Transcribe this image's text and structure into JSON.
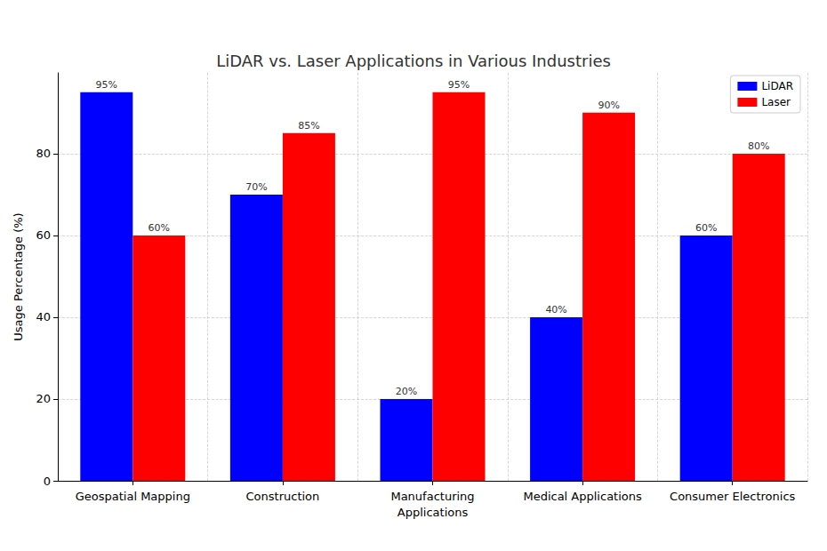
{
  "chart_data": {
    "type": "bar",
    "title": "LiDAR vs. Laser Applications in Various Industries",
    "y_label": "Usage Percentage (%)",
    "categories": [
      "Geospatial Mapping",
      "Construction",
      "Manufacturing\nApplications",
      "Medical Applications",
      "Consumer Electronics"
    ],
    "series": [
      {
        "name": "LiDAR",
        "color": "blue",
        "values": [
          95,
          70,
          20,
          40,
          60
        ],
        "value_labels": [
          "95%",
          "70%",
          "20%",
          "40%",
          "60%"
        ]
      },
      {
        "name": "Laser",
        "color": "red",
        "values": [
          60,
          85,
          95,
          90,
          80
        ],
        "value_labels": [
          "60%",
          "85%",
          "95%",
          "90%",
          "80%"
        ]
      }
    ],
    "ylim": [
      0,
      99.75
    ],
    "yticks": [
      0,
      20,
      40,
      60,
      80
    ],
    "grid": true,
    "legend": "upper right",
    "data_labels": true
  }
}
